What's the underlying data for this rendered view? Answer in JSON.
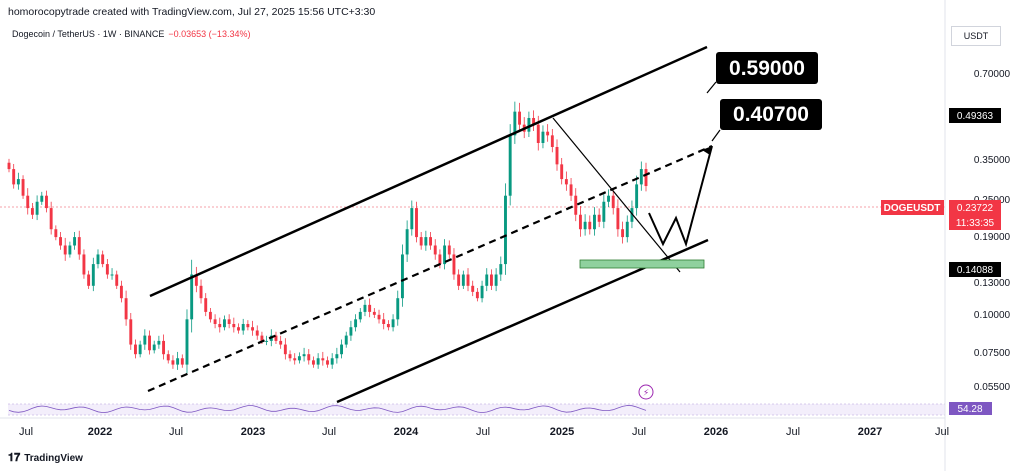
{
  "header": {
    "attribution": "homorocopytrade created with TradingView.com, Jul 27, 2025 15:56 UTC+3:30"
  },
  "symbol": {
    "title": "Dogecoin / TetherUS · 1W · BINANCE",
    "change": "−0.03653 (−13.34%)"
  },
  "currency_label": "USDT",
  "footer": {
    "brand": "TradingView",
    "logo_icon": "tradingview-logo-icon"
  },
  "colors": {
    "up": "#089981",
    "down": "#f23645",
    "price_tag": "#f23645",
    "black_tag": "#000000",
    "support_zone": "#8fd19e",
    "rsi_tag": "#7e57c2"
  },
  "chart_data": {
    "type": "candlestick",
    "symbol": "DOGEUSDT",
    "timeframe": "1W",
    "y_scale": "log",
    "ylim": [
      0.045,
      0.85
    ],
    "x_ticks": [
      "Jul",
      "2022",
      "Jul",
      "2023",
      "Jul",
      "2024",
      "Jul",
      "2025",
      "Jul",
      "2026",
      "Jul",
      "2027",
      "Jul"
    ],
    "y_ticks": [
      "0.70000",
      "0.35000",
      "0.25000",
      "0.19000",
      "0.13000",
      "0.10000",
      "0.07500",
      "0.05500"
    ],
    "price_tags": {
      "dogeusdt": {
        "label": "DOGEUSDT",
        "price": "0.23722",
        "countdown": "11:33:35"
      },
      "high": "0.49363",
      "low": "0.14088",
      "rsi": "54.28"
    },
    "annotations": [
      {
        "text": "0.59000"
      },
      {
        "text": "0.40700"
      }
    ],
    "indicator_icon": "lightning-icon",
    "series_close": [
      0.27,
      0.24,
      0.25,
      0.22,
      0.2,
      0.19,
      0.21,
      0.22,
      0.2,
      0.17,
      0.16,
      0.15,
      0.14,
      0.15,
      0.16,
      0.14,
      0.12,
      0.11,
      0.13,
      0.14,
      0.13,
      0.12,
      0.12,
      0.11,
      0.1,
      0.085,
      0.07,
      0.065,
      0.07,
      0.075,
      0.067,
      0.07,
      0.072,
      0.065,
      0.062,
      0.06,
      0.063,
      0.06,
      0.085,
      0.12,
      0.11,
      0.1,
      0.09,
      0.085,
      0.082,
      0.08,
      0.085,
      0.082,
      0.08,
      0.078,
      0.082,
      0.08,
      0.078,
      0.075,
      0.072,
      0.072,
      0.075,
      0.072,
      0.07,
      0.065,
      0.063,
      0.062,
      0.064,
      0.065,
      0.062,
      0.06,
      0.063,
      0.062,
      0.06,
      0.063,
      0.065,
      0.07,
      0.075,
      0.08,
      0.085,
      0.09,
      0.095,
      0.09,
      0.088,
      0.085,
      0.082,
      0.08,
      0.085,
      0.1,
      0.14,
      0.17,
      0.2,
      0.16,
      0.15,
      0.16,
      0.15,
      0.14,
      0.13,
      0.15,
      0.14,
      0.12,
      0.11,
      0.12,
      0.11,
      0.105,
      0.1,
      0.11,
      0.12,
      0.11,
      0.12,
      0.13,
      0.22,
      0.35,
      0.42,
      0.38,
      0.36,
      0.4,
      0.38,
      0.33,
      0.36,
      0.35,
      0.32,
      0.28,
      0.25,
      0.24,
      0.22,
      0.19,
      0.17,
      0.18,
      0.17,
      0.19,
      0.18,
      0.21,
      0.22,
      0.2,
      0.17,
      0.16,
      0.18,
      0.2,
      0.24,
      0.27,
      0.237
    ],
    "series_volatility": [
      0.03,
      0.04,
      0.05,
      0.03,
      0.06,
      0.04,
      0.05,
      0.03,
      0.04,
      0.05,
      0.03,
      0.04,
      0.06,
      0.03,
      0.04,
      0.05,
      0.04,
      0.03,
      0.05,
      0.04,
      0.03,
      0.04,
      0.05,
      0.03,
      0.04,
      0.06,
      0.05,
      0.04,
      0.03,
      0.05,
      0.04,
      0.03,
      0.04,
      0.05,
      0.03,
      0.04,
      0.05,
      0.03,
      0.08,
      0.12,
      0.06,
      0.05,
      0.04,
      0.03,
      0.04,
      0.05,
      0.03,
      0.04,
      0.05,
      0.03,
      0.04,
      0.03,
      0.05,
      0.04,
      0.03,
      0.04,
      0.05,
      0.03,
      0.04,
      0.05,
      0.03,
      0.04,
      0.03,
      0.05,
      0.04,
      0.03,
      0.04,
      0.05,
      0.03,
      0.04,
      0.05,
      0.04,
      0.03,
      0.05,
      0.04,
      0.03,
      0.04,
      0.05,
      0.03,
      0.04,
      0.05,
      0.03,
      0.04,
      0.06,
      0.08,
      0.07,
      0.06,
      0.05,
      0.04,
      0.05,
      0.04,
      0.05,
      0.04,
      0.05,
      0.04,
      0.05,
      0.04,
      0.03,
      0.05,
      0.04,
      0.03,
      0.04,
      0.05,
      0.04,
      0.05,
      0.06,
      0.1,
      0.09,
      0.08,
      0.07,
      0.06,
      0.05,
      0.06,
      0.07,
      0.05,
      0.06,
      0.05,
      0.06,
      0.05,
      0.06,
      0.05,
      0.06,
      0.07,
      0.06,
      0.05,
      0.06,
      0.05,
      0.06,
      0.05,
      0.06,
      0.07,
      0.06,
      0.05,
      0.06,
      0.07,
      0.06,
      0.05
    ]
  }
}
